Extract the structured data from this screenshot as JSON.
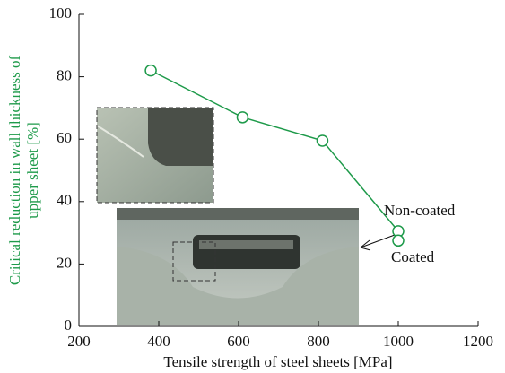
{
  "chart_data": {
    "type": "line",
    "xlabel": "Tensile strength of steel sheets [MPa]",
    "ylabel": [
      "Critical reduction in wall thickness of",
      "upper sheet [%]"
    ],
    "xlim": [
      200,
      1200
    ],
    "xticks": [
      200,
      400,
      600,
      800,
      1000,
      1200
    ],
    "ylim": [
      0,
      100
    ],
    "yticks": [
      0,
      20,
      40,
      60,
      80,
      100
    ],
    "color": "#1e9a4a",
    "series": [
      {
        "name": "Non-coated",
        "x": [
          380,
          610,
          810,
          1000
        ],
        "values": [
          82,
          67,
          59.5,
          30.5
        ]
      },
      {
        "name": "Coated",
        "x": [
          1000
        ],
        "values": [
          27.5
        ]
      }
    ]
  }
}
